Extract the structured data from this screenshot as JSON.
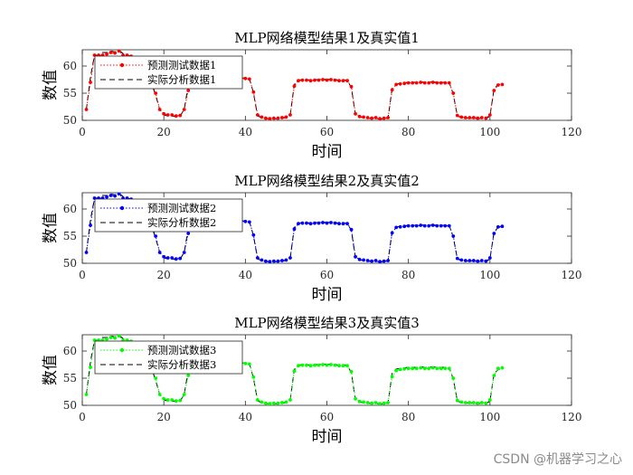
{
  "chart_data": [
    {
      "type": "line",
      "title": "MLP网络模型结果1及真实值1",
      "xlabel": "时间",
      "ylabel": "数值",
      "xlim": [
        0,
        120
      ],
      "ylim": [
        50,
        63
      ],
      "xticks": [
        0,
        20,
        40,
        60,
        80,
        100,
        120
      ],
      "yticks": [
        50,
        55,
        60
      ],
      "grid": false,
      "legend_position": "top-left",
      "series": [
        {
          "name": "预测测试数据1",
          "color": "#ff0000",
          "style": "dotted-markers",
          "values": [
            52.0,
            57.0,
            62.0,
            62.0,
            62.0,
            62.2,
            62.5,
            62.4,
            62.8,
            62.0,
            62.0,
            61.8,
            61.5,
            61.0,
            60.2,
            59.0,
            57.0,
            55.0,
            52.0,
            51.2,
            51.0,
            51.0,
            50.8,
            50.9,
            52.0,
            55.5,
            58.0,
            58.0,
            58.0,
            58.0,
            58.0,
            58.0,
            58.0,
            58.0,
            58.2,
            58.0,
            58.0,
            57.8,
            57.7,
            57.7,
            57.6,
            55.2,
            51.0,
            50.6,
            50.4,
            50.3,
            50.4,
            50.4,
            50.5,
            50.6,
            51.0,
            56.3,
            57.3,
            57.4,
            57.4,
            57.3,
            57.4,
            57.4,
            57.5,
            57.4,
            57.5,
            57.4,
            57.3,
            57.3,
            57.3,
            56.2,
            51.2,
            50.7,
            50.6,
            50.5,
            50.4,
            50.5,
            50.3,
            50.4,
            50.5,
            55.6,
            56.6,
            56.7,
            56.8,
            56.9,
            56.9,
            56.9,
            57.0,
            56.9,
            56.9,
            57.0,
            56.9,
            56.9,
            56.9,
            56.9,
            55.0,
            50.9,
            50.6,
            50.5,
            50.5,
            50.5,
            50.4,
            50.5,
            50.4,
            51.0,
            55.5,
            56.5,
            56.6
          ]
        },
        {
          "name": "实际分析数据1",
          "color": "#000000",
          "style": "dashed",
          "values": [
            52.0,
            58.0,
            62.0,
            62.0,
            62.5,
            62.5,
            62.8,
            62.6,
            62.9,
            62.3,
            62.0,
            61.8,
            61.4,
            60.8,
            60.0,
            58.8,
            56.8,
            54.6,
            52.0,
            51.0,
            50.8,
            50.8,
            50.7,
            50.8,
            52.0,
            56.5,
            58.2,
            58.2,
            58.2,
            58.1,
            58.1,
            58.2,
            58.1,
            58.1,
            58.3,
            58.1,
            58.1,
            57.9,
            57.8,
            57.8,
            57.7,
            55.0,
            50.8,
            50.5,
            50.3,
            50.3,
            50.3,
            50.3,
            50.4,
            50.5,
            50.9,
            56.6,
            57.4,
            57.5,
            57.5,
            57.4,
            57.5,
            57.5,
            57.6,
            57.5,
            57.6,
            57.5,
            57.4,
            57.4,
            57.4,
            56.0,
            51.0,
            50.6,
            50.5,
            50.4,
            50.3,
            50.4,
            50.2,
            50.3,
            50.4,
            55.9,
            56.7,
            56.8,
            56.9,
            57.0,
            57.0,
            57.0,
            57.1,
            57.0,
            57.0,
            57.1,
            57.0,
            57.0,
            57.0,
            57.0,
            54.8,
            50.8,
            50.5,
            50.4,
            50.4,
            50.4,
            50.3,
            50.4,
            50.3,
            50.8,
            55.8,
            56.6,
            56.7
          ]
        }
      ]
    },
    {
      "type": "line",
      "title": "MLP网络模型结果2及真实值2",
      "xlabel": "时间",
      "ylabel": "数值",
      "xlim": [
        0,
        120
      ],
      "ylim": [
        50,
        63
      ],
      "xticks": [
        0,
        20,
        40,
        60,
        80,
        100,
        120
      ],
      "yticks": [
        50,
        55,
        60
      ],
      "grid": false,
      "legend_position": "top-left",
      "series": [
        {
          "name": "预测测试数据2",
          "color": "#0000ff",
          "style": "dotted-markers",
          "values": [
            52.0,
            57.0,
            62.0,
            62.0,
            62.0,
            62.2,
            62.5,
            62.4,
            62.8,
            62.0,
            62.0,
            61.8,
            61.5,
            61.0,
            60.2,
            59.0,
            57.0,
            55.0,
            52.0,
            51.2,
            51.0,
            51.0,
            50.8,
            50.9,
            52.0,
            55.5,
            58.0,
            58.0,
            58.0,
            58.0,
            58.0,
            58.0,
            58.0,
            58.0,
            58.4,
            58.2,
            58.1,
            57.9,
            57.8,
            57.7,
            57.6,
            55.2,
            51.0,
            50.6,
            50.4,
            50.3,
            50.4,
            50.4,
            50.5,
            50.6,
            51.0,
            56.3,
            57.3,
            57.4,
            57.4,
            57.3,
            57.4,
            57.4,
            57.5,
            57.4,
            57.5,
            57.4,
            57.3,
            57.3,
            57.3,
            56.2,
            51.2,
            50.7,
            50.6,
            50.5,
            50.4,
            50.5,
            50.3,
            50.4,
            50.5,
            55.6,
            56.6,
            56.7,
            56.8,
            56.9,
            56.9,
            56.9,
            57.0,
            56.9,
            56.9,
            57.0,
            56.9,
            56.9,
            56.9,
            56.9,
            55.0,
            50.9,
            50.6,
            50.5,
            50.5,
            50.5,
            50.4,
            50.5,
            50.4,
            51.0,
            55.5,
            56.7,
            56.8
          ]
        },
        {
          "name": "实际分析数据2",
          "color": "#000000",
          "style": "dashed",
          "values": [
            52.0,
            58.0,
            62.0,
            62.0,
            62.5,
            62.5,
            62.8,
            62.6,
            62.9,
            62.3,
            62.0,
            61.8,
            61.4,
            60.8,
            60.0,
            58.8,
            56.8,
            54.6,
            52.0,
            51.0,
            50.8,
            50.8,
            50.7,
            50.8,
            52.0,
            56.5,
            58.2,
            58.2,
            58.2,
            58.1,
            58.1,
            58.2,
            58.1,
            58.1,
            58.3,
            58.1,
            58.1,
            57.9,
            57.8,
            57.8,
            57.7,
            55.0,
            50.8,
            50.5,
            50.3,
            50.3,
            50.3,
            50.3,
            50.4,
            50.5,
            50.9,
            56.6,
            57.4,
            57.5,
            57.5,
            57.4,
            57.5,
            57.5,
            57.6,
            57.5,
            57.6,
            57.5,
            57.4,
            57.4,
            57.4,
            56.0,
            51.0,
            50.6,
            50.5,
            50.4,
            50.3,
            50.4,
            50.2,
            50.3,
            50.4,
            55.9,
            56.7,
            56.8,
            56.9,
            57.0,
            57.0,
            57.0,
            57.1,
            57.0,
            57.0,
            57.1,
            57.0,
            57.0,
            57.0,
            57.0,
            54.8,
            50.8,
            50.5,
            50.4,
            50.4,
            50.4,
            50.3,
            50.4,
            50.3,
            50.8,
            55.8,
            56.6,
            56.7
          ]
        }
      ]
    },
    {
      "type": "line",
      "title": "MLP网络模型结果3及真实值3",
      "xlabel": "时间",
      "ylabel": "数值",
      "xlim": [
        0,
        120
      ],
      "ylim": [
        50,
        63
      ],
      "xticks": [
        0,
        20,
        40,
        60,
        80,
        100,
        120
      ],
      "yticks": [
        50,
        55,
        60
      ],
      "grid": false,
      "legend_position": "top-left",
      "series": [
        {
          "name": "预测测试数据3",
          "color": "#00ff00",
          "style": "dotted-markers",
          "values": [
            52.0,
            57.0,
            62.0,
            62.0,
            62.0,
            62.2,
            62.5,
            62.4,
            62.8,
            62.0,
            62.0,
            61.8,
            61.5,
            61.0,
            60.2,
            59.0,
            57.0,
            55.0,
            52.0,
            51.2,
            51.0,
            51.0,
            50.8,
            50.9,
            52.0,
            55.5,
            58.0,
            58.0,
            58.0,
            58.0,
            58.0,
            58.0,
            58.0,
            58.0,
            58.2,
            57.9,
            57.9,
            57.8,
            57.8,
            57.7,
            57.6,
            55.2,
            51.0,
            50.6,
            50.4,
            50.3,
            50.4,
            50.4,
            50.5,
            50.6,
            51.0,
            56.3,
            57.3,
            57.4,
            57.4,
            57.3,
            57.4,
            57.4,
            57.5,
            57.4,
            57.5,
            57.4,
            57.3,
            57.3,
            57.3,
            56.2,
            51.2,
            50.7,
            50.6,
            50.5,
            50.4,
            50.5,
            50.3,
            50.4,
            50.5,
            55.3,
            56.4,
            56.6,
            56.7,
            56.8,
            56.8,
            56.8,
            56.9,
            56.8,
            56.8,
            56.9,
            56.8,
            56.8,
            56.8,
            56.8,
            55.0,
            50.9,
            50.6,
            50.5,
            50.5,
            50.5,
            50.4,
            50.5,
            50.4,
            51.0,
            55.5,
            56.8,
            56.9
          ]
        },
        {
          "name": "实际分析数据3",
          "color": "#000000",
          "style": "dashed",
          "values": [
            52.0,
            58.0,
            62.0,
            62.0,
            62.5,
            62.5,
            62.8,
            62.6,
            62.9,
            62.3,
            62.0,
            61.8,
            61.4,
            60.8,
            60.0,
            58.8,
            56.8,
            54.6,
            52.0,
            51.0,
            50.8,
            50.8,
            50.7,
            50.8,
            52.0,
            56.5,
            58.2,
            58.2,
            58.2,
            58.1,
            58.1,
            58.2,
            58.1,
            58.1,
            58.3,
            58.1,
            58.1,
            57.9,
            57.8,
            57.8,
            57.7,
            55.0,
            50.8,
            50.5,
            50.3,
            50.3,
            50.3,
            50.3,
            50.4,
            50.5,
            50.9,
            56.6,
            57.4,
            57.5,
            57.5,
            57.4,
            57.5,
            57.5,
            57.6,
            57.5,
            57.6,
            57.5,
            57.4,
            57.4,
            57.4,
            56.0,
            51.0,
            50.6,
            50.5,
            50.4,
            50.3,
            50.4,
            50.2,
            50.3,
            50.4,
            55.9,
            56.7,
            56.8,
            56.9,
            57.0,
            57.0,
            57.0,
            57.1,
            57.0,
            57.0,
            57.1,
            57.0,
            57.0,
            57.0,
            57.0,
            54.8,
            50.8,
            50.5,
            50.4,
            50.4,
            50.4,
            50.3,
            50.4,
            50.3,
            50.8,
            55.8,
            56.6,
            56.7
          ]
        }
      ]
    }
  ],
  "watermark": "CSDN @机器学习之心"
}
